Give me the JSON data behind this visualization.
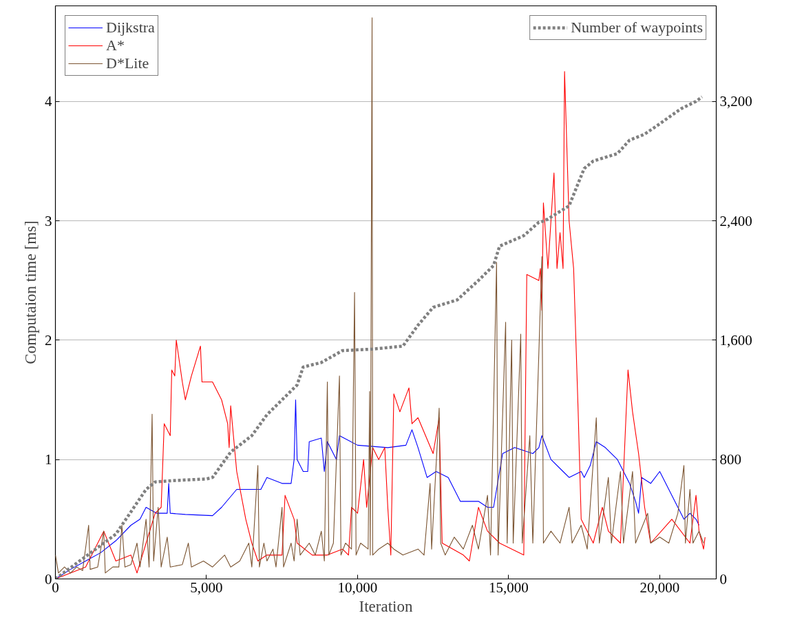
{
  "chart_data": {
    "type": "line",
    "xlabel": "Iteration",
    "ylabel": "Computaion time [ms]",
    "xlim": [
      0,
      21870
    ],
    "ylim": [
      0,
      4.8
    ],
    "y2lim": [
      0,
      3840
    ],
    "xticks": [
      0,
      {
        "value": 5000,
        "label": "5,000"
      },
      {
        "value": 10000,
        "label": "10,000"
      },
      {
        "value": 15000,
        "label": "15,000"
      },
      {
        "value": 20000,
        "label": "20,000"
      }
    ],
    "yticks": [
      0,
      1,
      2,
      3,
      4
    ],
    "y2ticks": [
      0,
      800,
      {
        "value": 1600,
        "label": "1,600"
      },
      {
        "value": 2400,
        "label": "2,400"
      },
      {
        "value": 3200,
        "label": "3,200"
      }
    ],
    "grid": "y",
    "legend": "top left",
    "series": [
      {
        "name": "Dijkstra",
        "color": "#0000ff",
        "x": [
          0,
          500,
          1000,
          1500,
          2000,
          2500,
          2800,
          3000,
          3350,
          3700,
          3750,
          3800,
          4300,
          5200,
          5500,
          6000,
          6800,
          7000,
          7500,
          7800,
          7900,
          7950,
          8000,
          8200,
          8350,
          8400,
          8800,
          8900,
          9000,
          9300,
          9400,
          10000,
          11000,
          11600,
          11800,
          12000,
          12300,
          12600,
          13000,
          13400,
          14000,
          14300,
          14500,
          14800,
          15200,
          15800,
          16000,
          16100,
          16400,
          16800,
          17000,
          17400,
          17500,
          17700,
          17900,
          18200,
          18600,
          19000,
          19200,
          19300,
          19400,
          19700,
          20000,
          20600,
          20800,
          21000,
          21200,
          21300
        ],
        "values": [
          0,
          0.08,
          0.15,
          0.22,
          0.32,
          0.45,
          0.5,
          0.6,
          0.55,
          0.55,
          0.8,
          0.55,
          0.54,
          0.53,
          0.6,
          0.75,
          0.75,
          0.85,
          0.8,
          0.8,
          1.0,
          1.5,
          1.0,
          0.9,
          0.9,
          1.15,
          1.18,
          0.9,
          1.15,
          1.0,
          1.2,
          1.12,
          1.1,
          1.12,
          1.25,
          1.1,
          0.85,
          0.9,
          0.85,
          0.65,
          0.65,
          0.6,
          0.6,
          1.05,
          1.1,
          1.05,
          1.1,
          1.2,
          1.0,
          0.9,
          0.85,
          0.9,
          0.85,
          0.95,
          1.15,
          1.1,
          1.0,
          0.8,
          0.65,
          0.55,
          0.85,
          0.8,
          0.9,
          0.6,
          0.5,
          0.55,
          0.5,
          0.45
        ]
      },
      {
        "name": "A*",
        "color": "#ff0000",
        "x": [
          0,
          1000,
          1600,
          2000,
          2500,
          2700,
          3000,
          3300,
          3500,
          3600,
          3800,
          3850,
          3950,
          4000,
          4200,
          4300,
          4500,
          4800,
          4850,
          5200,
          5500,
          5700,
          5750,
          5800,
          6000,
          6300,
          6500,
          6700,
          7000,
          7200,
          7500,
          7600,
          7900,
          8000,
          8500,
          9000,
          9500,
          9700,
          9800,
          10000,
          10200,
          10300,
          10500,
          10700,
          10900,
          11000,
          11100,
          11200,
          11400,
          11700,
          11800,
          12000,
          12500,
          12700,
          12800,
          13500,
          13700,
          14000,
          14300,
          14700,
          15500,
          15600,
          16000,
          16050,
          16100,
          16150,
          16300,
          16500,
          16600,
          16700,
          16800,
          16850,
          17000,
          17150,
          17300,
          17400,
          17800,
          18100,
          18300,
          18700,
          18950,
          19100,
          19300,
          19500,
          19700,
          20400,
          21000,
          21200,
          21300,
          21450,
          21500
        ],
        "values": [
          0,
          0.1,
          0.4,
          0.15,
          0.2,
          0.05,
          0.3,
          0.55,
          0.6,
          1.3,
          1.2,
          1.75,
          1.7,
          2.0,
          1.65,
          1.5,
          1.7,
          1.95,
          1.65,
          1.65,
          1.5,
          1.3,
          1.1,
          1.45,
          0.9,
          0.5,
          0.3,
          0.15,
          0.2,
          0.2,
          0.2,
          0.7,
          0.5,
          0.3,
          0.2,
          0.2,
          0.25,
          0.2,
          0.6,
          0.55,
          1.0,
          0.6,
          1.1,
          1.0,
          1.1,
          0.6,
          0.2,
          1.55,
          1.4,
          1.6,
          1.3,
          1.35,
          1.05,
          1.35,
          0.3,
          0.2,
          0.15,
          0.6,
          0.4,
          0.3,
          0.2,
          2.55,
          2.5,
          2.6,
          2.25,
          3.15,
          2.6,
          3.4,
          2.6,
          2.9,
          2.6,
          4.25,
          3.0,
          2.6,
          1.4,
          0.5,
          0.3,
          0.6,
          0.4,
          0.3,
          1.75,
          1.4,
          1.05,
          0.6,
          0.3,
          0.5,
          0.3,
          0.7,
          0.4,
          0.25,
          0.35
        ]
      },
      {
        "name": "D*Lite",
        "color": "#7b5431",
        "x": [
          0,
          100,
          300,
          500,
          700,
          900,
          1100,
          1150,
          1400,
          1600,
          1650,
          1900,
          2100,
          2200,
          2300,
          2500,
          2700,
          2800,
          3000,
          3100,
          3200,
          3250,
          3400,
          3500,
          3700,
          3800,
          4200,
          4400,
          4500,
          4900,
          5200,
          5600,
          5800,
          6100,
          6400,
          6500,
          6700,
          6750,
          6900,
          7000,
          7200,
          7300,
          7500,
          7550,
          7800,
          7900,
          8000,
          8100,
          8400,
          8600,
          8800,
          8900,
          9000,
          9050,
          9200,
          9400,
          9450,
          9600,
          9800,
          9900,
          9950,
          10100,
          10350,
          10400,
          10420,
          10480,
          10500,
          10700,
          11000,
          11200,
          11500,
          12000,
          12200,
          12400,
          12450,
          12700,
          12750,
          12900,
          13200,
          13500,
          13800,
          14000,
          14300,
          14400,
          14600,
          14650,
          14900,
          14950,
          15100,
          15150,
          15400,
          15450,
          15700,
          15800,
          16100,
          16150,
          16400,
          16700,
          17000,
          17100,
          17400,
          17600,
          17900,
          18000,
          18300,
          18400,
          18700,
          18800,
          19100,
          19200,
          19600,
          19700,
          20000,
          20300,
          20600,
          20800,
          20850,
          21000,
          21100,
          21300,
          21450
        ],
        "values": [
          0.2,
          0.05,
          0.1,
          0.05,
          0.1,
          0.07,
          0.45,
          0.08,
          0.1,
          0.4,
          0.05,
          0.1,
          0.1,
          0.45,
          0.1,
          0.12,
          0.3,
          0.1,
          0.5,
          0.1,
          1.38,
          0.15,
          0.6,
          0.1,
          0.35,
          0.1,
          0.12,
          0.3,
          0.1,
          0.15,
          0.1,
          0.2,
          0.1,
          0.15,
          0.3,
          0.1,
          0.95,
          0.1,
          0.3,
          0.15,
          0.25,
          0.1,
          0.6,
          0.1,
          0.3,
          0.15,
          0.5,
          0.2,
          0.3,
          0.2,
          0.4,
          0.15,
          1.65,
          0.2,
          0.3,
          1.7,
          0.2,
          0.3,
          0.25,
          2.4,
          0.2,
          0.3,
          0.25,
          1.57,
          0.2,
          4.7,
          0.2,
          0.25,
          0.3,
          0.25,
          0.2,
          0.25,
          0.2,
          0.8,
          0.25,
          1.43,
          0.3,
          0.2,
          0.35,
          0.25,
          0.45,
          0.25,
          0.7,
          0.2,
          2.65,
          0.2,
          2.15,
          0.3,
          2.0,
          0.3,
          2.05,
          0.3,
          1.2,
          0.3,
          2.7,
          0.3,
          0.4,
          0.3,
          0.6,
          0.3,
          0.45,
          0.25,
          1.35,
          0.3,
          0.85,
          0.3,
          0.9,
          0.3,
          0.9,
          0.3,
          0.55,
          0.3,
          0.35,
          0.3,
          0.55,
          0.95,
          0.3,
          0.75,
          0.3,
          0.4,
          0.3
        ]
      },
      {
        "name": "Number of waypoints",
        "color": "#808080",
        "axis": "y2",
        "line_style": "dotted",
        "x": [
          0,
          2000,
          3000,
          3300,
          4000,
          5000,
          5200,
          5800,
          6500,
          7000,
          7500,
          8000,
          8200,
          8800,
          9500,
          10500,
          11500,
          12000,
          12500,
          13300,
          14000,
          14500,
          14700,
          15500,
          16000,
          16200,
          17000,
          17500,
          17800,
          18600,
          19000,
          19500,
          20000,
          20700,
          21200,
          21400
        ],
        "values": [
          0,
          300,
          600,
          650,
          660,
          670,
          680,
          850,
          960,
          1100,
          1200,
          1300,
          1420,
          1450,
          1530,
          1540,
          1560,
          1700,
          1820,
          1870,
          2000,
          2100,
          2230,
          2300,
          2390,
          2400,
          2500,
          2750,
          2800,
          2850,
          2940,
          2980,
          3050,
          3150,
          3200,
          3230
        ]
      }
    ]
  }
}
